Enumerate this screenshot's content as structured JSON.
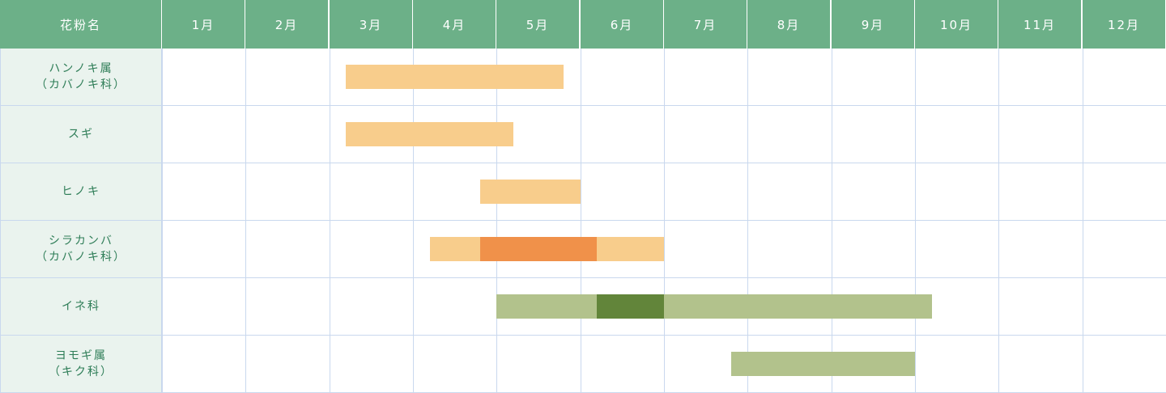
{
  "header": {
    "name_label": "花粉名"
  },
  "chart_data": {
    "type": "gantt",
    "categories": [
      "1月",
      "2月",
      "3月",
      "4月",
      "5月",
      "6月",
      "7月",
      "8月",
      "9月",
      "10月",
      "11月",
      "12月"
    ],
    "x_unit": "month (1 = start of 1月, 13 = end of 12月)",
    "colors": {
      "tree_season": "#f8cd8c",
      "tree_peak": "#f0914a",
      "grass_season": "#b2c28c",
      "grass_peak": "#62853a"
    },
    "rows": [
      {
        "name": [
          "ハンノキ属",
          "（カバノキ科）"
        ],
        "bars": [
          {
            "start": 3.2,
            "end": 5.8,
            "kind": "tree_season"
          }
        ]
      },
      {
        "name": [
          "スギ"
        ],
        "bars": [
          {
            "start": 3.2,
            "end": 5.2,
            "kind": "tree_season"
          }
        ]
      },
      {
        "name": [
          "ヒノキ"
        ],
        "bars": [
          {
            "start": 4.8,
            "end": 6.0,
            "kind": "tree_season"
          }
        ]
      },
      {
        "name": [
          "シラカンバ",
          "（カバノキ科）"
        ],
        "bars": [
          {
            "start": 4.2,
            "end": 7.0,
            "kind": "tree_season"
          },
          {
            "start": 4.8,
            "end": 6.2,
            "kind": "tree_peak"
          }
        ]
      },
      {
        "name": [
          "イネ科"
        ],
        "bars": [
          {
            "start": 5.0,
            "end": 10.2,
            "kind": "grass_season"
          },
          {
            "start": 6.2,
            "end": 7.0,
            "kind": "grass_peak"
          }
        ]
      },
      {
        "name": [
          "ヨモギ属",
          "（キク科）"
        ],
        "bars": [
          {
            "start": 7.8,
            "end": 10.0,
            "kind": "grass_season"
          }
        ]
      }
    ]
  }
}
